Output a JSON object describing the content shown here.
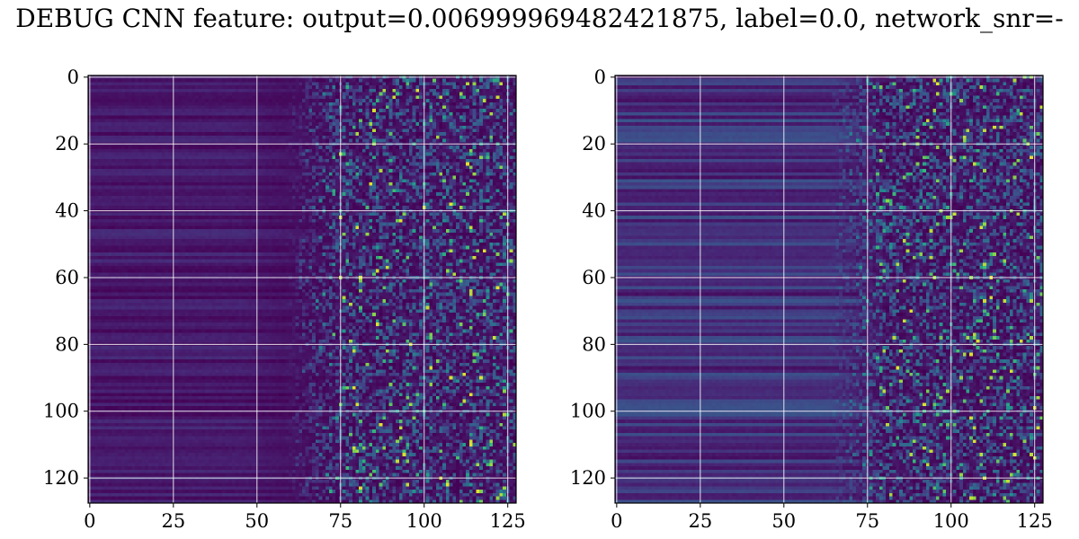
{
  "title": "DEBUG CNN feature: output=0.006999969482421875, label=0.0, network_snr=-",
  "colors": {
    "colormap": "viridis",
    "background": "#ffffff",
    "grid": "#ffffff",
    "frame": "#000000"
  },
  "chart_data": [
    {
      "type": "heatmap",
      "title": "",
      "xlabel": "",
      "ylabel": "",
      "rows": 128,
      "cols": 128,
      "xlim": [
        -0.5,
        127.5
      ],
      "ylim": [
        127.5,
        -0.5
      ],
      "xticks": [
        0,
        25,
        50,
        75,
        100,
        125
      ],
      "yticks": [
        0,
        20,
        40,
        60,
        80,
        100,
        120
      ],
      "grid": true,
      "pattern": "low values (dark purple) on the left with horizontal banding, noisy higher values on the right starting near column 70",
      "noise_onset_col": 70
    },
    {
      "type": "heatmap",
      "title": "",
      "xlabel": "",
      "ylabel": "",
      "rows": 128,
      "cols": 128,
      "xlim": [
        -0.5,
        127.5
      ],
      "ylim": [
        127.5,
        -0.5
      ],
      "xticks": [
        0,
        25,
        50,
        75,
        100,
        125
      ],
      "yticks": [
        0,
        20,
        40,
        60,
        80,
        100,
        120
      ],
      "grid": true,
      "pattern": "horizontal banding with moderate values across the row, noisy higher values on the right starting near column 75",
      "noise_onset_col": 75
    }
  ]
}
